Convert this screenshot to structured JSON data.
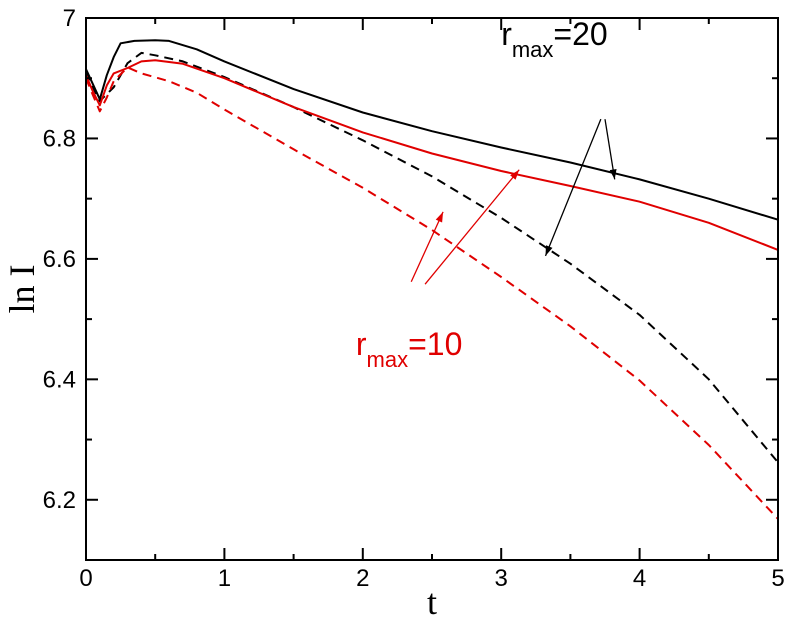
{
  "chart_data": {
    "type": "line",
    "title": "",
    "xlabel": "t",
    "ylabel": "ln I",
    "xlim": [
      0,
      5
    ],
    "ylim": [
      6.1,
      7.0
    ],
    "xticks": [
      "0",
      "1",
      "2",
      "3",
      "4",
      "5"
    ],
    "yticks": [
      "6.2",
      "6.4",
      "6.6",
      "6.8",
      "7"
    ],
    "grid": false,
    "series": [
      {
        "color": "#000000",
        "dash": "solid",
        "points": [
          [
            0.0,
            6.915
          ],
          [
            0.05,
            6.89
          ],
          [
            0.1,
            6.865
          ],
          [
            0.15,
            6.905
          ],
          [
            0.2,
            6.935
          ],
          [
            0.25,
            6.958
          ],
          [
            0.35,
            6.962
          ],
          [
            0.5,
            6.963
          ],
          [
            0.6,
            6.962
          ],
          [
            0.8,
            6.948
          ],
          [
            1.0,
            6.928
          ],
          [
            1.5,
            6.882
          ],
          [
            2.0,
            6.843
          ],
          [
            2.5,
            6.812
          ],
          [
            3.0,
            6.785
          ],
          [
            3.5,
            6.76
          ],
          [
            4.0,
            6.732
          ],
          [
            4.5,
            6.7
          ],
          [
            5.0,
            6.665
          ]
        ]
      },
      {
        "color": "#000000",
        "dash": "dashed",
        "points": [
          [
            0.0,
            6.91
          ],
          [
            0.05,
            6.885
          ],
          [
            0.1,
            6.862
          ],
          [
            0.2,
            6.885
          ],
          [
            0.3,
            6.925
          ],
          [
            0.4,
            6.942
          ],
          [
            0.5,
            6.938
          ],
          [
            0.7,
            6.928
          ],
          [
            1.0,
            6.902
          ],
          [
            1.5,
            6.852
          ],
          [
            2.0,
            6.797
          ],
          [
            2.5,
            6.737
          ],
          [
            3.0,
            6.668
          ],
          [
            3.5,
            6.592
          ],
          [
            4.0,
            6.507
          ],
          [
            4.5,
            6.4
          ],
          [
            5.0,
            6.262
          ]
        ]
      },
      {
        "color": "#e00000",
        "dash": "solid",
        "points": [
          [
            0.0,
            6.905
          ],
          [
            0.05,
            6.878
          ],
          [
            0.1,
            6.855
          ],
          [
            0.15,
            6.888
          ],
          [
            0.2,
            6.908
          ],
          [
            0.3,
            6.917
          ],
          [
            0.4,
            6.928
          ],
          [
            0.5,
            6.93
          ],
          [
            0.7,
            6.924
          ],
          [
            1.0,
            6.9
          ],
          [
            1.5,
            6.852
          ],
          [
            2.0,
            6.81
          ],
          [
            2.5,
            6.775
          ],
          [
            3.0,
            6.746
          ],
          [
            3.5,
            6.721
          ],
          [
            4.0,
            6.695
          ],
          [
            4.5,
            6.66
          ],
          [
            5.0,
            6.615
          ]
        ]
      },
      {
        "color": "#e00000",
        "dash": "dashed",
        "points": [
          [
            0.0,
            6.9
          ],
          [
            0.05,
            6.872
          ],
          [
            0.1,
            6.845
          ],
          [
            0.15,
            6.868
          ],
          [
            0.2,
            6.895
          ],
          [
            0.3,
            6.918
          ],
          [
            0.4,
            6.908
          ],
          [
            0.6,
            6.895
          ],
          [
            0.8,
            6.876
          ],
          [
            1.0,
            6.848
          ],
          [
            1.5,
            6.782
          ],
          [
            2.0,
            6.718
          ],
          [
            2.5,
            6.648
          ],
          [
            3.0,
            6.57
          ],
          [
            3.5,
            6.488
          ],
          [
            4.0,
            6.398
          ],
          [
            4.5,
            6.291
          ],
          [
            5.0,
            6.168
          ]
        ]
      }
    ],
    "annotations": [
      {
        "id": "rmax20",
        "base": "r",
        "sub": "max",
        "suffix": "=20",
        "color": "#000000",
        "anchor": [
          3.0,
          6.955
        ],
        "arrows": [
          {
            "from": [
              3.75,
              6.832
            ],
            "to": [
              3.82,
              6.732
            ]
          },
          {
            "from": [
              3.72,
              6.832
            ],
            "to": [
              3.32,
              6.605
            ]
          }
        ]
      },
      {
        "id": "rmax10",
        "base": "r",
        "sub": "max",
        "suffix": "=10",
        "color": "#e00000",
        "anchor": [
          1.95,
          6.44
        ],
        "arrows": [
          {
            "from": [
              2.35,
              6.562
            ],
            "to": [
              2.58,
              6.678
            ]
          },
          {
            "from": [
              2.45,
              6.558
            ],
            "to": [
              3.13,
              6.748
            ]
          }
        ]
      }
    ]
  }
}
